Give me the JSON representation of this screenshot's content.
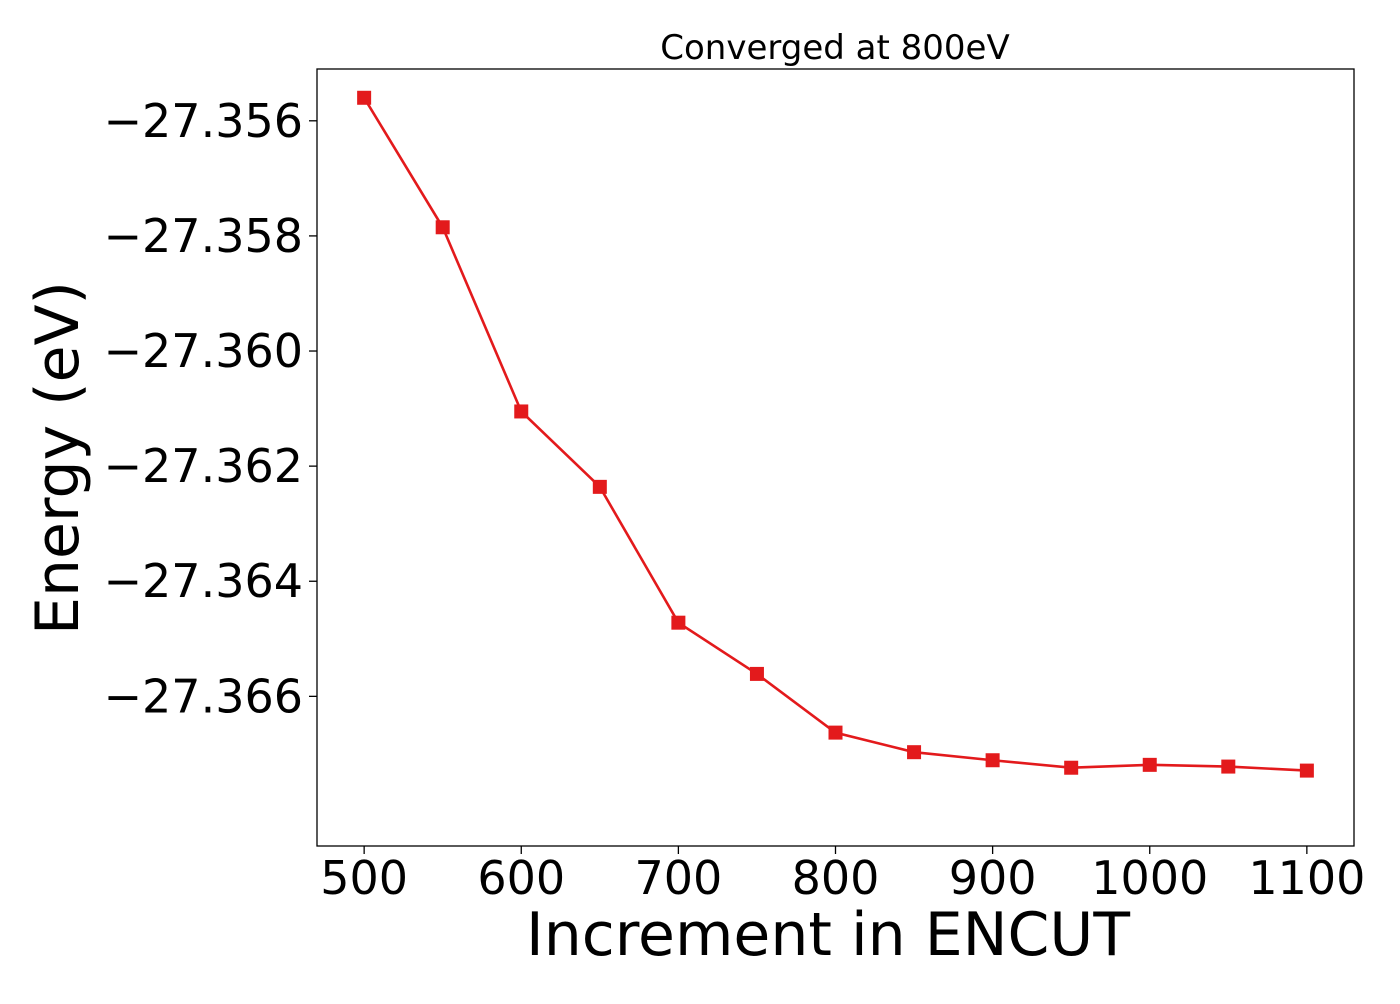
{
  "chart_data": {
    "type": "line",
    "title": "Converged at 800eV",
    "xlabel": "Increment in ENCUT",
    "ylabel": "Energy (eV)",
    "xlim": [
      470,
      1130
    ],
    "ylim": [
      -27.3686,
      -27.3551
    ],
    "grid": false,
    "legend": "none",
    "x": [
      500,
      550,
      600,
      650,
      700,
      750,
      800,
      850,
      900,
      950,
      1000,
      1050,
      1100
    ],
    "series": [
      {
        "marker": "square",
        "color": "#e31a1c",
        "values": [
          -27.3556,
          -27.35785,
          -27.36105,
          -27.36236,
          -27.36472,
          -27.36561,
          -27.36663,
          -27.36697,
          -27.36711,
          -27.36724,
          -27.36719,
          -27.36722,
          -27.36729
        ]
      }
    ],
    "xticks": [
      500,
      600,
      700,
      800,
      900,
      1000,
      1100
    ],
    "xtick_labels": [
      "500",
      "600",
      "700",
      "800",
      "900",
      "1000",
      "1100"
    ],
    "yticks": [
      -27.366,
      -27.364,
      -27.362,
      -27.36,
      -27.358,
      -27.356
    ],
    "ytick_labels": [
      "−27.366",
      "−27.364",
      "−27.362",
      "−27.360",
      "−27.358",
      "−27.356"
    ]
  }
}
